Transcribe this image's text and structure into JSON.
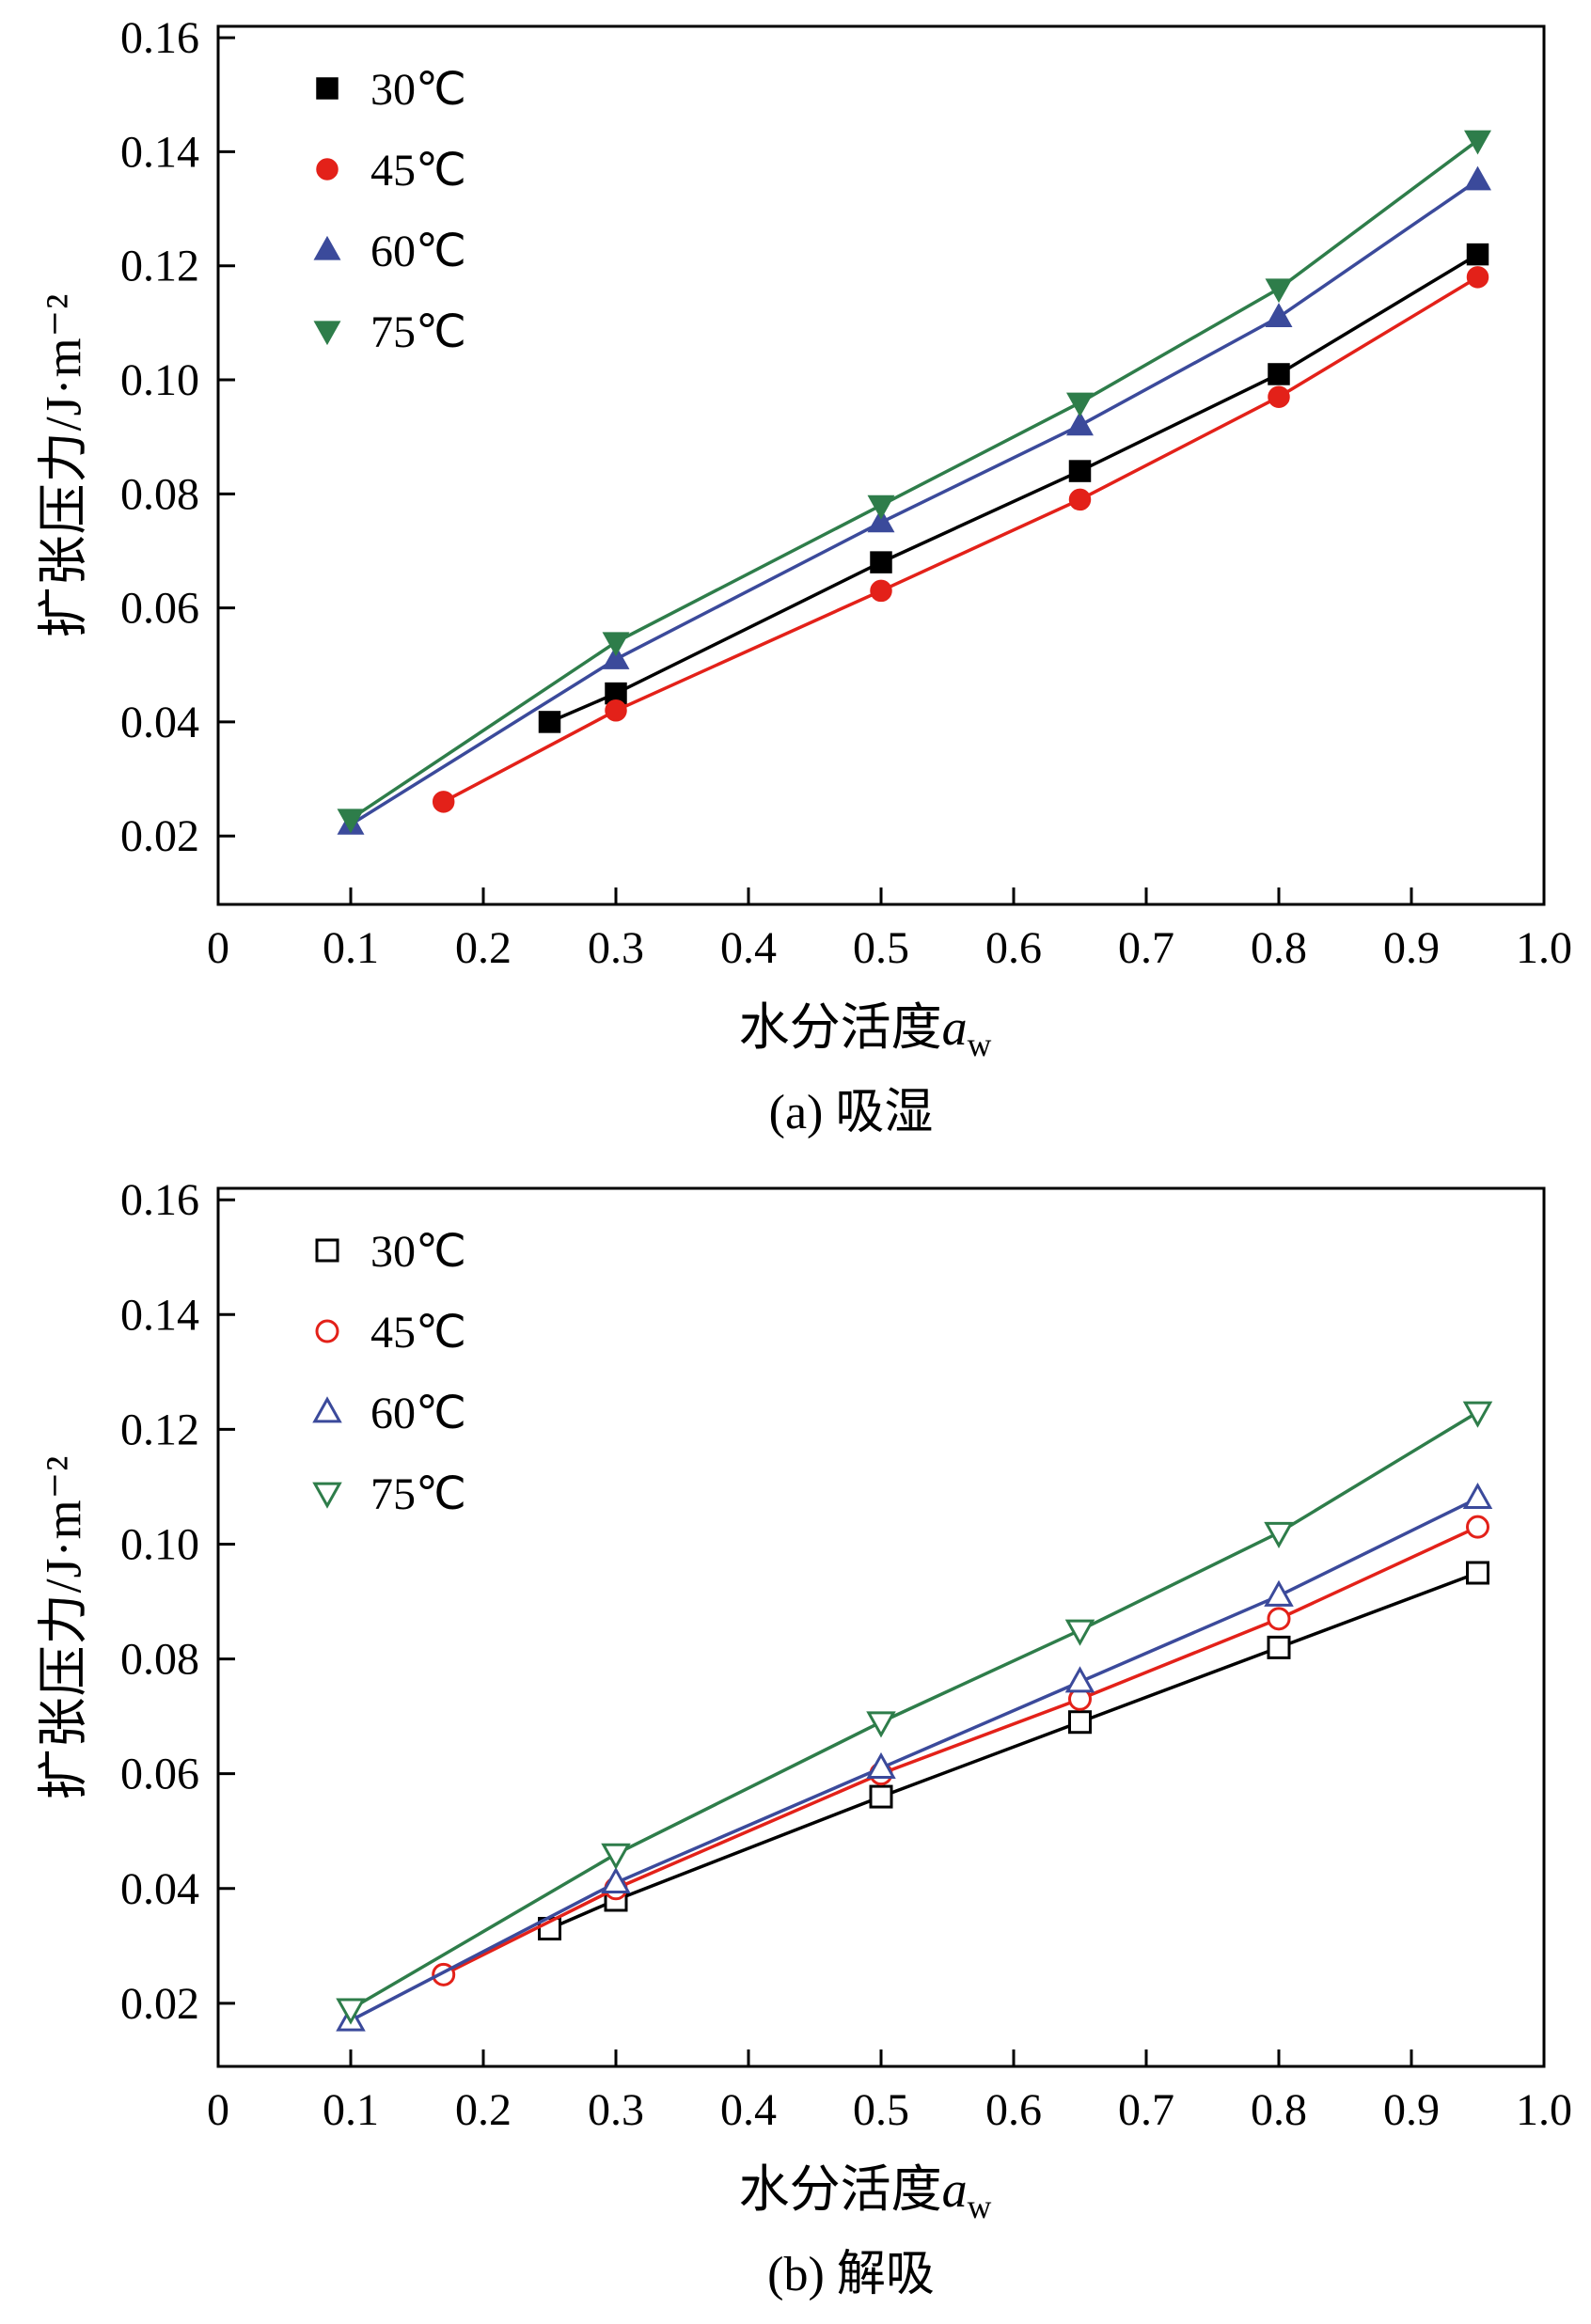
{
  "figure": {
    "background": "#ffffff",
    "frame_color": "#000000"
  },
  "chart_data": [
    {
      "type": "line",
      "caption": "(a) 吸湿",
      "xlabel": "水分活度a_w",
      "ylabel": "扩张压力/J·m⁻²",
      "xlim": [
        0,
        1.0
      ],
      "ylim": [
        0.008,
        0.162
      ],
      "xticks": [
        0,
        0.1,
        0.2,
        0.3,
        0.4,
        0.5,
        0.6,
        0.7,
        0.8,
        0.9,
        1.0
      ],
      "xtick_labels": [
        "0",
        "0.1",
        "0.2",
        "0.3",
        "0.4",
        "0.5",
        "0.6",
        "0.7",
        "0.8",
        "0.9",
        "1.0"
      ],
      "yticks": [
        0.02,
        0.04,
        0.06,
        0.08,
        0.1,
        0.12,
        0.14,
        0.16
      ],
      "ytick_labels": [
        "0.02",
        "0.04",
        "0.06",
        "0.08",
        "0.10",
        "0.12",
        "0.14",
        "0.16"
      ],
      "grid": false,
      "legend_position": "upper-left",
      "series": [
        {
          "name": "30℃",
          "color": "#000000",
          "marker": "square",
          "filled": true,
          "x": [
            0.25,
            0.3,
            0.5,
            0.65,
            0.8,
            0.95
          ],
          "y": [
            0.04,
            0.045,
            0.068,
            0.084,
            0.101,
            0.122
          ]
        },
        {
          "name": "45℃",
          "color": "#e32119",
          "marker": "circle",
          "filled": true,
          "x": [
            0.17,
            0.3,
            0.5,
            0.65,
            0.8,
            0.95
          ],
          "y": [
            0.026,
            0.042,
            0.063,
            0.079,
            0.097,
            0.118
          ]
        },
        {
          "name": "60℃",
          "color": "#3b4a9b",
          "marker": "triangle-up",
          "filled": true,
          "x": [
            0.1,
            0.3,
            0.5,
            0.65,
            0.8,
            0.95
          ],
          "y": [
            0.022,
            0.051,
            0.075,
            0.092,
            0.111,
            0.135
          ]
        },
        {
          "name": "75℃",
          "color": "#2e7d4a",
          "marker": "triangle-down",
          "filled": true,
          "x": [
            0.1,
            0.3,
            0.5,
            0.65,
            0.8,
            0.95
          ],
          "y": [
            0.023,
            0.054,
            0.078,
            0.096,
            0.116,
            0.142
          ]
        }
      ]
    },
    {
      "type": "line",
      "caption": "(b) 解吸",
      "xlabel": "水分活度a_w",
      "ylabel": "扩张压力/J·m⁻²",
      "xlim": [
        0,
        1.0
      ],
      "ylim": [
        0.009,
        0.162
      ],
      "xticks": [
        0,
        0.1,
        0.2,
        0.3,
        0.4,
        0.5,
        0.6,
        0.7,
        0.8,
        0.9,
        1.0
      ],
      "xtick_labels": [
        "0",
        "0.1",
        "0.2",
        "0.3",
        "0.4",
        "0.5",
        "0.6",
        "0.7",
        "0.8",
        "0.9",
        "1.0"
      ],
      "yticks": [
        0.02,
        0.04,
        0.06,
        0.08,
        0.1,
        0.12,
        0.14,
        0.16
      ],
      "ytick_labels": [
        "0.02",
        "0.04",
        "0.06",
        "0.08",
        "0.10",
        "0.12",
        "0.14",
        "0.16"
      ],
      "grid": false,
      "legend_position": "upper-left",
      "series": [
        {
          "name": "30℃",
          "color": "#000000",
          "marker": "square",
          "filled": false,
          "x": [
            0.25,
            0.3,
            0.5,
            0.65,
            0.8,
            0.95
          ],
          "y": [
            0.033,
            0.038,
            0.056,
            0.069,
            0.082,
            0.095
          ]
        },
        {
          "name": "45℃",
          "color": "#e32119",
          "marker": "circle",
          "filled": false,
          "x": [
            0.17,
            0.3,
            0.5,
            0.65,
            0.8,
            0.95
          ],
          "y": [
            0.025,
            0.04,
            0.06,
            0.073,
            0.087,
            0.103
          ]
        },
        {
          "name": "60℃",
          "color": "#3b4a9b",
          "marker": "triangle-up",
          "filled": false,
          "x": [
            0.1,
            0.3,
            0.5,
            0.65,
            0.8,
            0.95
          ],
          "y": [
            0.017,
            0.041,
            0.061,
            0.076,
            0.091,
            0.108
          ]
        },
        {
          "name": "75℃",
          "color": "#2e7d4a",
          "marker": "triangle-down",
          "filled": false,
          "x": [
            0.1,
            0.3,
            0.5,
            0.65,
            0.8,
            0.95
          ],
          "y": [
            0.019,
            0.046,
            0.069,
            0.085,
            0.102,
            0.123
          ]
        }
      ]
    }
  ]
}
